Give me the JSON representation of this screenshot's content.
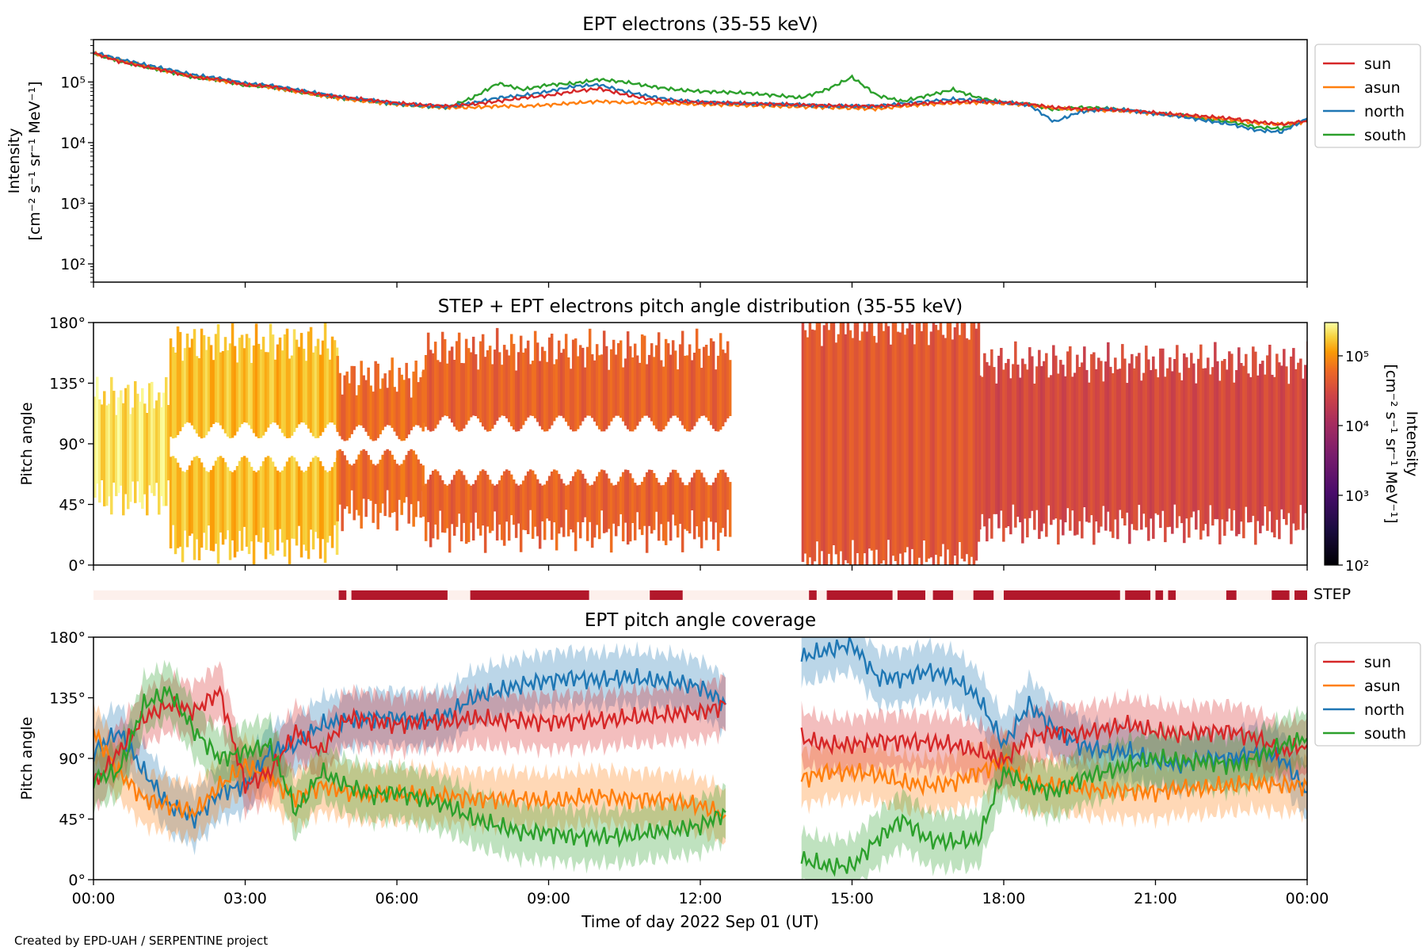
{
  "footer": "Created by EPD-UAH / SERPENTINE project",
  "colors": {
    "sun": "#d62728",
    "asun": "#ff7f0e",
    "north": "#1f77b4",
    "south": "#2ca02c",
    "step_on": "#b2182b",
    "step_off": "#fdf0ec"
  },
  "chart_data": [
    {
      "type": "line",
      "title": "EPT electrons (35-55 keV)",
      "ylabel_line1": "Intensity",
      "ylabel_line2": "[cm⁻² s⁻¹ sr⁻¹ MeV⁻¹]",
      "yscale": "log",
      "ylim": [
        50,
        500000
      ],
      "yticks": [
        "10²",
        "10³",
        "10⁴",
        "10⁵"
      ],
      "xlim_hours": [
        0,
        24
      ],
      "legend": "outside-right",
      "x_hours": [
        0,
        0.5,
        1,
        1.5,
        2,
        2.5,
        3,
        3.5,
        4,
        4.5,
        5,
        5.5,
        6,
        6.5,
        7,
        7.5,
        8,
        8.5,
        9,
        9.5,
        10,
        10.5,
        11,
        11.5,
        12,
        12.5,
        13,
        13.5,
        14,
        14.5,
        15,
        15.5,
        16,
        16.5,
        17,
        17.5,
        18,
        18.5,
        19,
        19.5,
        20,
        20.5,
        21,
        21.5,
        22,
        22.5,
        23,
        23.5,
        24
      ],
      "series": [
        {
          "name": "sun",
          "values": [
            300000,
            220000,
            180000,
            150000,
            120000,
            110000,
            90000,
            85000,
            72000,
            62000,
            55000,
            50000,
            45000,
            42000,
            40000,
            43000,
            48000,
            55000,
            60000,
            70000,
            78000,
            62000,
            52000,
            48000,
            46000,
            45000,
            44000,
            43000,
            42000,
            41000,
            40000,
            40000,
            42000,
            45000,
            47000,
            48000,
            46000,
            43000,
            38000,
            36000,
            35000,
            34000,
            31000,
            29000,
            27000,
            25000,
            22000,
            20000,
            23000
          ]
        },
        {
          "name": "asun",
          "values": [
            300000,
            230000,
            185000,
            150000,
            125000,
            105000,
            92000,
            82000,
            70000,
            60000,
            52000,
            47000,
            43000,
            40000,
            38000,
            38000,
            40000,
            40000,
            42000,
            45000,
            48000,
            46000,
            45000,
            44000,
            43000,
            42000,
            41000,
            40000,
            39000,
            38000,
            37000,
            36000,
            40000,
            43000,
            45000,
            46000,
            44000,
            42000,
            37000,
            35000,
            34000,
            33000,
            30000,
            28000,
            26000,
            24000,
            21000,
            20000,
            22000
          ]
        },
        {
          "name": "north",
          "values": [
            310000,
            240000,
            195000,
            160000,
            130000,
            115000,
            95000,
            88000,
            75000,
            64000,
            55000,
            50000,
            44000,
            41000,
            39000,
            45000,
            55000,
            60000,
            70000,
            85000,
            90000,
            70000,
            58000,
            50000,
            47000,
            45000,
            44000,
            43000,
            42000,
            40000,
            40000,
            40000,
            44000,
            48000,
            52000,
            50000,
            46000,
            42000,
            22000,
            32000,
            36000,
            34000,
            30000,
            27000,
            23000,
            20000,
            16000,
            15000,
            25000
          ]
        },
        {
          "name": "south",
          "values": [
            295000,
            225000,
            180000,
            148000,
            118000,
            108000,
            88000,
            83000,
            70000,
            60000,
            53000,
            48000,
            43000,
            40000,
            38000,
            55000,
            95000,
            75000,
            90000,
            95000,
            110000,
            100000,
            85000,
            75000,
            70000,
            68000,
            65000,
            60000,
            55000,
            75000,
            120000,
            60000,
            48000,
            60000,
            75000,
            55000,
            46000,
            43000,
            35000,
            38000,
            37000,
            34000,
            30000,
            28000,
            25000,
            22000,
            18000,
            17000,
            24000
          ]
        }
      ]
    },
    {
      "type": "heatmap",
      "title": "STEP + EPT electrons pitch angle distribution (35-55 keV)",
      "ylabel": "Pitch angle",
      "yticks": [
        "0°",
        "45°",
        "90°",
        "135°",
        "180°"
      ],
      "ylim": [
        0,
        180
      ],
      "colorbar_label_line1": "Intensity",
      "colorbar_label_line2": "[cm⁻² s⁻¹ sr⁻¹ MeV⁻¹]",
      "colorbar_ticks": [
        "10²",
        "10³",
        "10⁴",
        "10⁵"
      ],
      "colorbar_range": [
        100,
        300000
      ],
      "colormap": "inferno",
      "data_gap_hours": [
        12.6,
        14.0
      ],
      "coverage_bands": [
        {
          "from_h": 0,
          "to_h": 1.5,
          "lo": 50,
          "hi": 125,
          "gap_lo": null,
          "gap_hi": null,
          "intensity": 250000
        },
        {
          "from_h": 1.5,
          "to_h": 4.8,
          "lo": 15,
          "hi": 165,
          "gap_lo": 75,
          "gap_hi": 100,
          "intensity": 180000
        },
        {
          "from_h": 4.8,
          "to_h": 6.5,
          "lo": 40,
          "hi": 140,
          "gap_lo": 80,
          "gap_hi": 98,
          "intensity": 70000
        },
        {
          "from_h": 6.5,
          "to_h": 12.6,
          "lo": 25,
          "hi": 160,
          "gap_lo": 65,
          "gap_hi": 105,
          "intensity": 60000
        },
        {
          "from_h": 14.0,
          "to_h": 17.5,
          "lo": 3,
          "hi": 178,
          "gap_lo": null,
          "gap_hi": null,
          "intensity": 50000
        },
        {
          "from_h": 17.5,
          "to_h": 24,
          "lo": 30,
          "hi": 150,
          "gap_lo": null,
          "gap_hi": null,
          "intensity": 35000
        }
      ],
      "step_label": "STEP",
      "step_on_intervals_hours": [
        [
          4.85,
          5.0
        ],
        [
          5.1,
          7.0
        ],
        [
          7.45,
          9.8
        ],
        [
          11.0,
          11.65
        ],
        [
          14.15,
          14.3
        ],
        [
          14.5,
          15.8
        ],
        [
          15.9,
          16.45
        ],
        [
          16.6,
          17.0
        ],
        [
          17.4,
          17.8
        ],
        [
          18.0,
          20.3
        ],
        [
          20.4,
          20.9
        ],
        [
          21.0,
          21.15
        ],
        [
          21.25,
          21.4
        ],
        [
          22.4,
          22.6
        ],
        [
          23.3,
          23.65
        ],
        [
          23.75,
          24.0
        ]
      ]
    },
    {
      "type": "line",
      "title": "EPT pitch angle coverage",
      "ylabel": "Pitch angle",
      "xlabel": "Time of day 2022 Sep 01 (UT)",
      "yticks": [
        "0°",
        "45°",
        "90°",
        "135°",
        "180°"
      ],
      "ylim": [
        0,
        180
      ],
      "xticks": [
        "00:00",
        "03:00",
        "06:00",
        "09:00",
        "12:00",
        "15:00",
        "18:00",
        "21:00",
        "00:00"
      ],
      "legend": "outside-right",
      "data_gap_hours": [
        12.6,
        14.0
      ],
      "x_hours": [
        0,
        0.5,
        1,
        1.5,
        2,
        2.5,
        3,
        3.5,
        4,
        4.5,
        5,
        5.5,
        6,
        6.5,
        7,
        7.5,
        8,
        8.5,
        9,
        9.5,
        10,
        10.5,
        11,
        11.5,
        12,
        12.5,
        14,
        14.5,
        15,
        15.5,
        16,
        16.5,
        17,
        17.5,
        18,
        18.5,
        19,
        19.5,
        20,
        20.5,
        21,
        21.5,
        22,
        22.5,
        23,
        23.5,
        24
      ],
      "band_halfwidth_deg": 20,
      "series": [
        {
          "name": "sun",
          "values": [
            70,
            95,
            120,
            130,
            125,
            140,
            70,
            80,
            110,
            95,
            120,
            118,
            115,
            118,
            117,
            120,
            118,
            118,
            117,
            118,
            118,
            120,
            121,
            123,
            124,
            130,
            105,
            100,
            100,
            103,
            103,
            102,
            100,
            95,
            88,
            105,
            110,
            108,
            112,
            115,
            110,
            108,
            110,
            110,
            105,
            95,
            100
          ]
        },
        {
          "name": "asun",
          "values": [
            110,
            80,
            60,
            55,
            50,
            70,
            85,
            75,
            60,
            70,
            65,
            63,
            63,
            63,
            62,
            60,
            60,
            60,
            58,
            60,
            62,
            60,
            60,
            58,
            55,
            48,
            75,
            80,
            80,
            78,
            72,
            70,
            72,
            80,
            88,
            70,
            70,
            68,
            66,
            66,
            65,
            68,
            68,
            70,
            72,
            70,
            70
          ]
        },
        {
          "name": "north",
          "values": [
            95,
            110,
            80,
            55,
            45,
            65,
            70,
            95,
            100,
            115,
            118,
            120,
            120,
            118,
            122,
            135,
            140,
            145,
            148,
            150,
            148,
            150,
            148,
            147,
            143,
            130,
            165,
            170,
            175,
            150,
            150,
            155,
            150,
            135,
            100,
            130,
            112,
            100,
            95,
            95,
            88,
            85,
            90,
            90,
            95,
            90,
            65
          ]
        },
        {
          "name": "south",
          "values": [
            75,
            80,
            130,
            140,
            110,
            90,
            95,
            100,
            50,
            80,
            70,
            63,
            65,
            60,
            55,
            45,
            40,
            35,
            35,
            32,
            32,
            32,
            35,
            37,
            40,
            50,
            15,
            10,
            10,
            30,
            45,
            30,
            28,
            30,
            80,
            70,
            65,
            75,
            80,
            85,
            90,
            88,
            88,
            85,
            90,
            100,
            105
          ]
        }
      ]
    }
  ]
}
